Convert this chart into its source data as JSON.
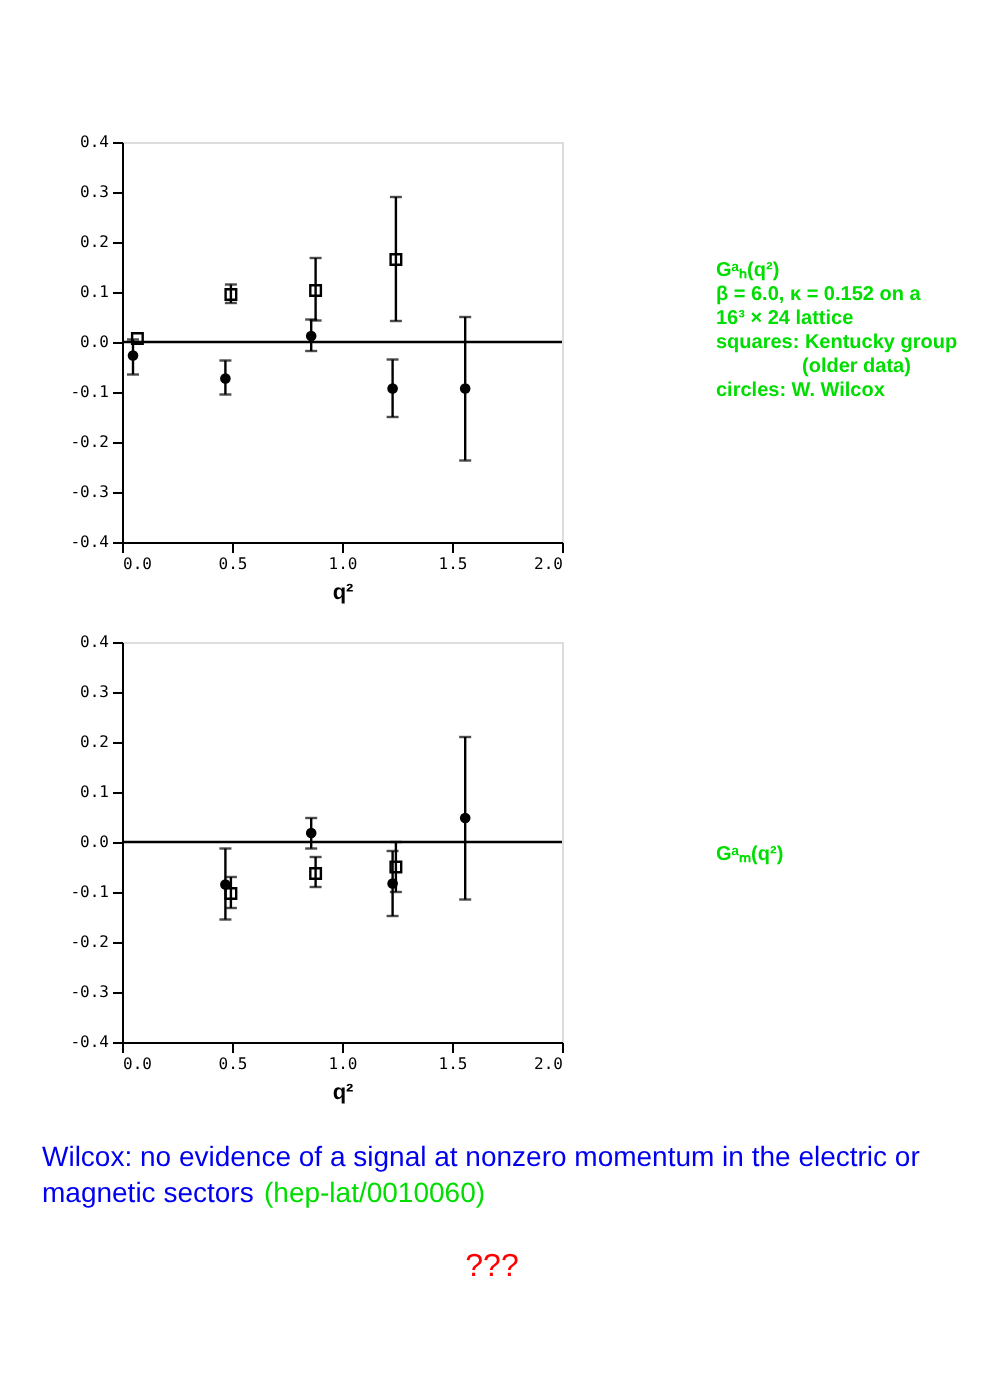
{
  "chart_data": [
    {
      "type": "scatter",
      "xlabel": "q²",
      "xlim": [
        0,
        2
      ],
      "xticks": [
        {
          "value": 0,
          "label": "0.0"
        },
        {
          "value": 0.5,
          "label": "0.5"
        },
        {
          "value": 1,
          "label": "1.0"
        },
        {
          "value": 1.5,
          "label": "1.5"
        },
        {
          "value": 2,
          "label": "2.0"
        }
      ],
      "ylim": [
        -0.4,
        0.4
      ],
      "yticks": [
        {
          "value": -0.4,
          "label": "-0.4"
        },
        {
          "value": -0.3,
          "label": "-0.3"
        },
        {
          "value": -0.2,
          "label": "-0.2"
        },
        {
          "value": -0.1,
          "label": "-0.1"
        },
        {
          "value": 0,
          "label": "0.0"
        },
        {
          "value": 0.1,
          "label": "0.1"
        },
        {
          "value": 0.2,
          "label": "0.2"
        },
        {
          "value": 0.3,
          "label": "0.3"
        },
        {
          "value": 0.4,
          "label": "0.4"
        }
      ],
      "ref_lines": [
        {
          "axis": "y",
          "value": 0
        }
      ],
      "series": [
        {
          "color": "#000000",
          "marker": "square",
          "x": [
            0.07,
            0.495,
            0.88,
            1.245
          ],
          "values": [
            0.007,
            0.095,
            0.103,
            0.165
          ],
          "errors": [
            null,
            [
              0.078,
              0.115
            ],
            [
              0.043,
              0.168
            ],
            [
              0.042,
              0.29
            ]
          ]
        },
        {
          "color": "#000000",
          "marker": "circle",
          "x": [
            0.05,
            0.47,
            0.86,
            1.23,
            1.56
          ],
          "values": [
            -0.027,
            -0.073,
            0.012,
            -0.093,
            -0.093
          ],
          "errors": [
            [
              -0.065,
              0.005
            ],
            [
              -0.105,
              -0.037
            ],
            [
              -0.018,
              0.045
            ],
            [
              -0.15,
              -0.035
            ],
            [
              -0.237,
              0.05
            ]
          ]
        }
      ],
      "annotations": [
        "Gᵃₕ(q²)",
        "β = 6.0, κ = 0.152 on a",
        "16³ × 24 lattice",
        "squares: Kentucky group",
        "(older data)",
        "circles: W. Wilcox"
      ]
    },
    {
      "type": "scatter",
      "xlabel": "q²",
      "xlim": [
        0,
        2
      ],
      "xticks": [
        {
          "value": 0,
          "label": "0.0"
        },
        {
          "value": 0.5,
          "label": "0.5"
        },
        {
          "value": 1,
          "label": "1.0"
        },
        {
          "value": 1.5,
          "label": "1.5"
        },
        {
          "value": 2,
          "label": "2.0"
        }
      ],
      "ylim": [
        -0.4,
        0.4
      ],
      "yticks": [
        {
          "value": -0.4,
          "label": "-0.4"
        },
        {
          "value": -0.3,
          "label": "-0.3"
        },
        {
          "value": -0.2,
          "label": "-0.2"
        },
        {
          "value": -0.1,
          "label": "-0.1"
        },
        {
          "value": 0,
          "label": "0.0"
        },
        {
          "value": 0.1,
          "label": "0.1"
        },
        {
          "value": 0.2,
          "label": "0.2"
        },
        {
          "value": 0.3,
          "label": "0.3"
        },
        {
          "value": 0.4,
          "label": "0.4"
        }
      ],
      "ref_lines": [
        {
          "axis": "y",
          "value": 0
        }
      ],
      "series": [
        {
          "color": "#000000",
          "marker": "square",
          "x": [
            0.495,
            0.88,
            1.245
          ],
          "values": [
            -0.103,
            -0.063,
            -0.05
          ],
          "errors": [
            [
              -0.132,
              -0.07
            ],
            [
              -0.09,
              -0.03
            ],
            [
              -0.1,
              0
            ]
          ]
        },
        {
          "color": "#000000",
          "marker": "circle",
          "x": [
            0.47,
            0.86,
            1.23,
            1.56
          ],
          "values": [
            -0.085,
            0.018,
            -0.083,
            0.048
          ],
          "errors": [
            [
              -0.155,
              -0.013
            ],
            [
              -0.013,
              0.048
            ],
            [
              -0.148,
              -0.018
            ],
            [
              -0.115,
              0.21
            ]
          ]
        }
      ],
      "annotations": [
        "Gᵃₘ(q²)",
        "Wilcox:  no evidence of a signal at nonzero momentum in the electric or",
        "magnetic sectors",
        "(hep-lat/0010060)",
        "???"
      ]
    }
  ]
}
